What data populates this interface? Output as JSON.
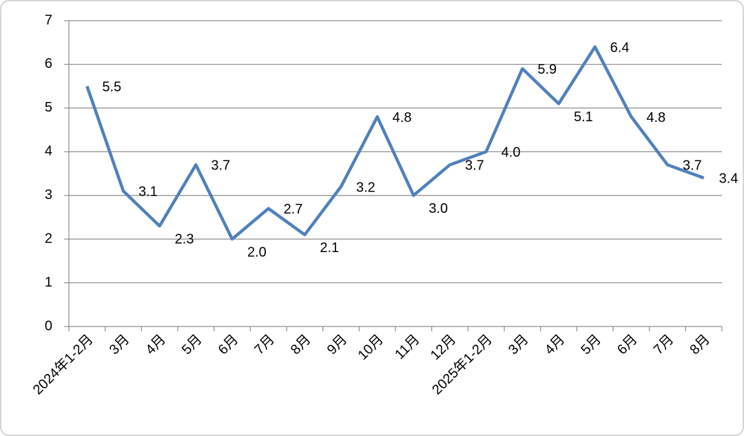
{
  "chart_data": {
    "type": "line",
    "categories": [
      "2024年1-2月",
      "3月",
      "4月",
      "5月",
      "6月",
      "7月",
      "8月",
      "9月",
      "10月",
      "11月",
      "12月",
      "2025年1-2月",
      "3月",
      "4月",
      "5月",
      "6月",
      "7月",
      "8月"
    ],
    "series": [
      {
        "color": "#4f81bd",
        "values": [
          5.5,
          3.1,
          2.3,
          3.7,
          2.0,
          2.7,
          2.1,
          3.2,
          4.8,
          3.0,
          3.7,
          4.0,
          5.9,
          5.1,
          6.4,
          4.8,
          3.7,
          3.4
        ],
        "value_labels": [
          "5.5",
          "3.1",
          "2.3",
          "3.7",
          "2.0",
          "2.7",
          "2.1",
          "3.2",
          "4.8",
          "3.0",
          "3.7",
          "4.0",
          "5.9",
          "5.1",
          "6.4",
          "4.8",
          "3.7",
          "3.4"
        ]
      }
    ],
    "ylim": [
      0,
      7
    ],
    "yticks": [
      0,
      1,
      2,
      3,
      4,
      5,
      6,
      7
    ],
    "grid": true
  }
}
